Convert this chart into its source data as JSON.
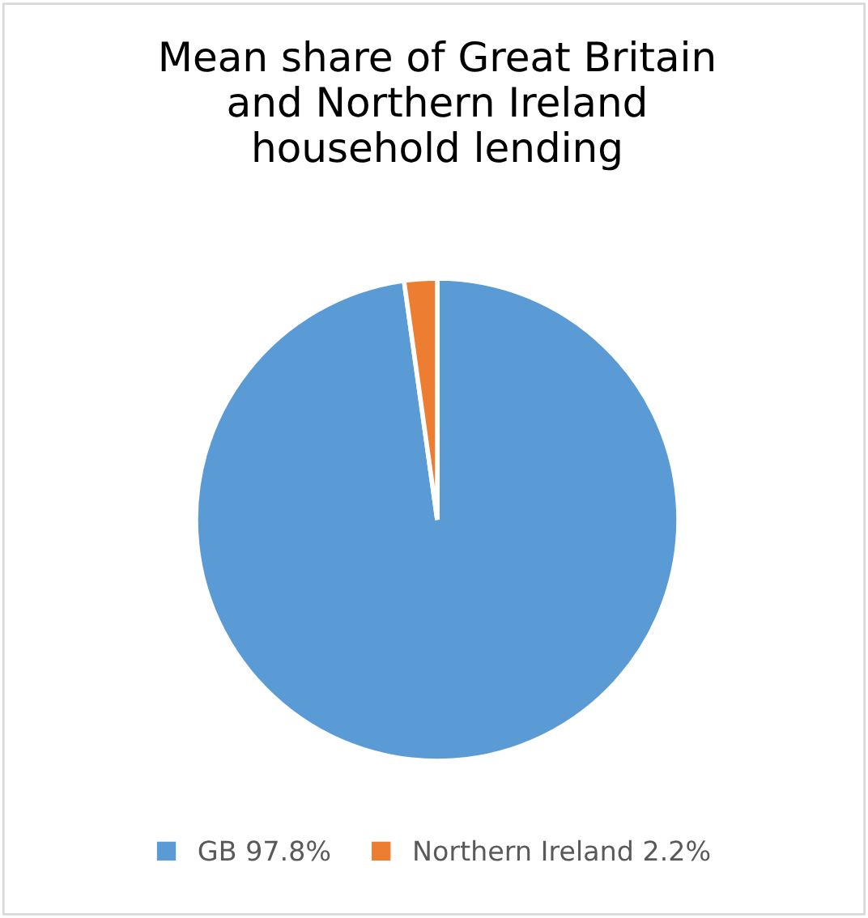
{
  "chart_data": {
    "type": "pie",
    "title": "Mean share of Great Britain\nand Northern Ireland\nhousehold lending",
    "categories": [
      "GB 97.8%",
      "Northern Ireland 2.2%"
    ],
    "values": [
      97.8,
      2.2
    ],
    "colors": [
      "#5b9bd5",
      "#ed7d31"
    ],
    "legend": "bottom"
  }
}
